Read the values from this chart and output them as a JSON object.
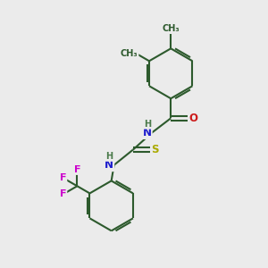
{
  "bg_color": "#ebebeb",
  "bond_color": "#2d5a2d",
  "bond_width": 1.5,
  "atom_colors": {
    "N": "#1a1acc",
    "O": "#cc1a1a",
    "S": "#aaaa00",
    "F": "#cc00cc",
    "H": "#4a7a4a",
    "C": "#2d5a2d"
  },
  "font_size": 8.5,
  "fig_size": [
    3.0,
    3.0
  ],
  "dpi": 100
}
